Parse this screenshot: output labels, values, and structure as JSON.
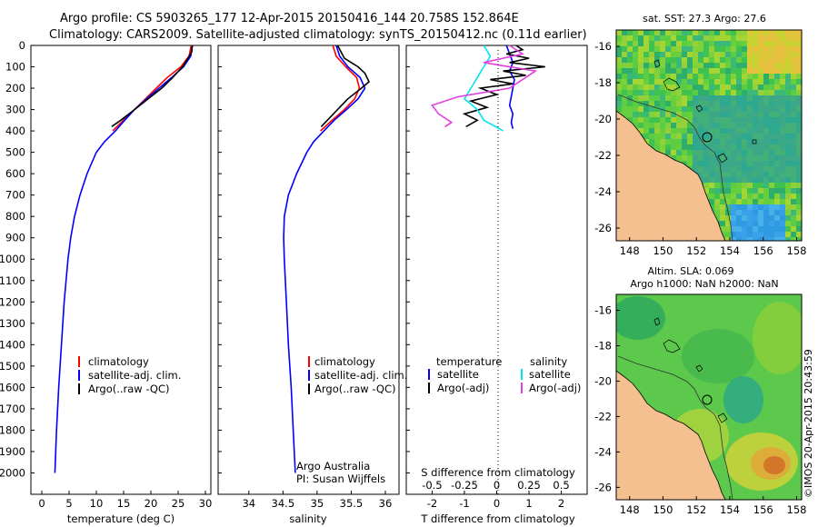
{
  "header": {
    "line1": "Argo profile: CS 5903265_177 12-Apr-2015 20150416_144 20.758S 152.864E",
    "line2": "Climatology: CARS2009. Satellite-adjusted climatology: synTS_20150412.nc (0.11d earlier)"
  },
  "colors": {
    "climatology": "#ff0000",
    "satellite": "#0000ff",
    "argo": "#000000",
    "sat_salinity": "#00e5ee",
    "argo_salinity": "#e040e0",
    "land": "#f5c08f"
  },
  "chart_data": [
    {
      "type": "line",
      "id": "temperature",
      "xlabel": "temperature (deg C)",
      "ylabel": "",
      "xlim": [
        -2,
        31
      ],
      "ylim": [
        2100,
        0
      ],
      "xticks": [
        "0",
        "5",
        "10",
        "15",
        "20",
        "25",
        "30"
      ],
      "yticks": [
        "0",
        "100",
        "200",
        "300",
        "400",
        "500",
        "600",
        "700",
        "800",
        "900",
        "1000",
        "1100",
        "1200",
        "1300",
        "1400",
        "1500",
        "1600",
        "1700",
        "1800",
        "1900",
        "2000"
      ],
      "legend": [
        "climatology",
        "satellite-adj. clim.",
        "Argo(..raw -QC)"
      ],
      "series": [
        {
          "name": "climatology",
          "depth": [
            0,
            50,
            100,
            150,
            200,
            250,
            300,
            350,
            400
          ],
          "values": [
            27.4,
            27.0,
            25.5,
            23.0,
            21.0,
            19.0,
            17.0,
            15.0,
            13.0
          ]
        },
        {
          "name": "satellite-adj. clim.",
          "depth": [
            0,
            50,
            100,
            150,
            200,
            250,
            300,
            350,
            400,
            450,
            500,
            600,
            700,
            800,
            900,
            1000,
            1200,
            1400,
            1600,
            1800,
            2000
          ],
          "values": [
            27.6,
            27.3,
            26.0,
            23.8,
            21.5,
            19.2,
            17.0,
            15.2,
            13.5,
            11.5,
            10.0,
            8.3,
            7.0,
            6.0,
            5.3,
            4.8,
            4.1,
            3.6,
            3.1,
            2.7,
            2.4
          ]
        },
        {
          "name": "Argo(..raw -QC)",
          "depth": [
            0,
            30,
            60,
            100,
            150,
            200,
            250,
            300,
            350,
            380
          ],
          "values": [
            27.6,
            27.5,
            26.8,
            25.8,
            24.0,
            22.0,
            19.5,
            17.0,
            14.5,
            12.8
          ]
        }
      ]
    },
    {
      "type": "line",
      "id": "salinity",
      "xlabel": "salinity",
      "ylabel": "",
      "xlim": [
        33.55,
        36.2
      ],
      "ylim": [
        2100,
        0
      ],
      "xticks": [
        "34",
        "34.5",
        "35",
        "35.5",
        "36"
      ],
      "legend": [
        "climatology",
        "satellite-adj. clim.",
        "Argo(..raw -QC)"
      ],
      "annotations": [
        "Argo Australia",
        "PI: Susan Wijffels"
      ],
      "series": [
        {
          "name": "climatology",
          "depth": [
            0,
            50,
            100,
            150,
            200,
            250,
            300,
            350,
            400
          ],
          "values": [
            35.23,
            35.28,
            35.42,
            35.58,
            35.62,
            35.55,
            35.4,
            35.22,
            35.05
          ]
        },
        {
          "name": "satellite-adj. clim.",
          "depth": [
            0,
            50,
            100,
            150,
            200,
            250,
            300,
            350,
            400,
            450,
            500,
            600,
            700,
            800,
            900,
            1000,
            1200,
            1400,
            1600,
            1800,
            2000
          ],
          "values": [
            35.28,
            35.33,
            35.45,
            35.63,
            35.7,
            35.6,
            35.43,
            35.25,
            35.1,
            34.95,
            34.85,
            34.7,
            34.58,
            34.52,
            34.51,
            34.52,
            34.55,
            34.58,
            34.62,
            34.65,
            34.68
          ]
        },
        {
          "name": "Argo(..raw -QC)",
          "depth": [
            0,
            30,
            60,
            80,
            100,
            130,
            170,
            200,
            250,
            300,
            350,
            380
          ],
          "values": [
            35.3,
            35.35,
            35.4,
            35.5,
            35.6,
            35.7,
            35.76,
            35.65,
            35.45,
            35.3,
            35.15,
            35.06
          ]
        }
      ]
    },
    {
      "type": "line",
      "id": "differences",
      "xlabel": "T difference from climatology",
      "xlabel2": "S difference from climatology",
      "xlim": [
        -2.8,
        2.8
      ],
      "ylim": [
        2100,
        0
      ],
      "xticks": [
        "-2",
        "-1",
        "0",
        "1",
        "2"
      ],
      "xticks_s": [
        "-0.5",
        "-0.25",
        "0",
        "0.25",
        "0.5"
      ],
      "legend_titles": [
        "temperature",
        "salinity"
      ],
      "legend": [
        "satellite",
        "Argo(-adj)",
        "satellite",
        "Argo(-adj)"
      ],
      "series": [
        {
          "name": "temperature satellite",
          "depth": [
            0,
            40,
            80,
            120,
            160,
            200,
            240,
            280,
            320,
            360,
            390
          ],
          "values": [
            0.3,
            0.4,
            0.5,
            0.4,
            0.55,
            0.5,
            0.45,
            0.4,
            0.5,
            0.45,
            0.5
          ]
        },
        {
          "name": "temperature Argo(-adj)",
          "depth": [
            0,
            20,
            40,
            60,
            80,
            100,
            120,
            140,
            160,
            180,
            200,
            230,
            260,
            290,
            320,
            350,
            380
          ],
          "values": [
            0.6,
            0.8,
            0.3,
            1.0,
            0.4,
            1.5,
            0.2,
            0.9,
            -0.2,
            0.5,
            -0.5,
            0.0,
            -0.8,
            -0.3,
            -1.0,
            -0.6,
            -0.95
          ]
        },
        {
          "name": "salinity satellite",
          "depth": [
            0,
            50,
            100,
            150,
            200,
            250,
            300,
            350,
            400
          ],
          "values": [
            -0.1,
            -0.05,
            -0.1,
            -0.15,
            -0.2,
            -0.25,
            -0.15,
            -0.1,
            0.05
          ]
        },
        {
          "name": "salinity Argo(-adj)",
          "depth": [
            0,
            40,
            80,
            120,
            160,
            200,
            240,
            280,
            320,
            360,
            380
          ],
          "values": [
            0.1,
            0.2,
            -0.1,
            0.3,
            0.2,
            0.1,
            -0.3,
            -0.5,
            -0.45,
            -0.35,
            -0.4
          ]
        }
      ]
    },
    {
      "type": "heatmap",
      "id": "sst_map",
      "title": "sat. SST: 27.3  Argo: 27.6",
      "xticks": [
        "148",
        "150",
        "152",
        "154",
        "156",
        "158"
      ],
      "yticks": [
        "-16",
        "-18",
        "-20",
        "-22",
        "-24",
        "-26"
      ],
      "xlim": [
        147.2,
        158.3
      ],
      "ylim": [
        -26.7,
        -15.1
      ],
      "argo_position": {
        "lon": 152.864,
        "lat": -20.758
      }
    },
    {
      "type": "heatmap",
      "id": "sla_map",
      "title": "Altim. SLA: 0.069",
      "subtitle": "Argo h1000: NaN h2000: NaN",
      "xticks": [
        "148",
        "150",
        "152",
        "154",
        "156",
        "158"
      ],
      "yticks": [
        "-16",
        "-18",
        "-20",
        "-22",
        "-24",
        "-26"
      ],
      "xlim": [
        147.2,
        158.3
      ],
      "ylim": [
        -26.7,
        -15.1
      ],
      "argo_position": {
        "lon": 152.864,
        "lat": -20.758
      }
    }
  ],
  "footer": {
    "credit": "©IMOS 20-Apr-2015 20:43:59"
  }
}
